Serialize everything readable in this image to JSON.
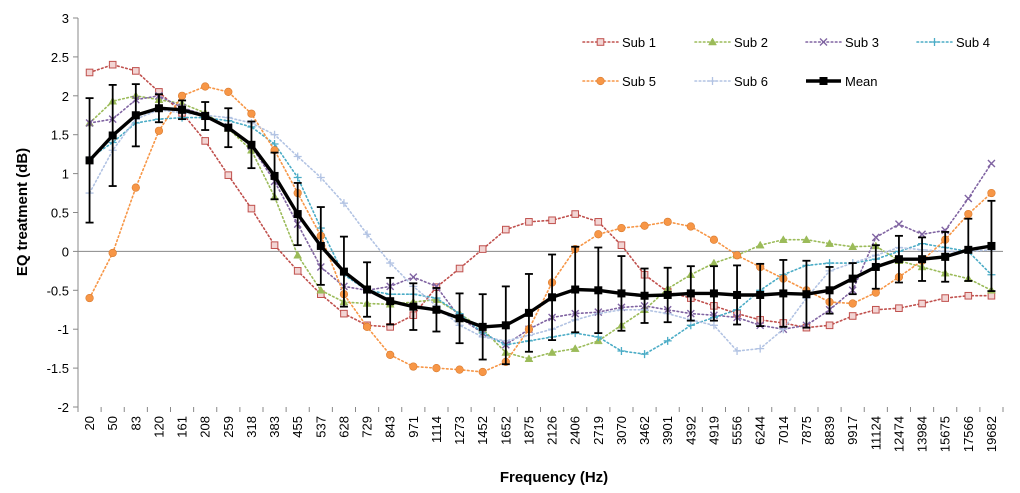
{
  "chart_data": {
    "type": "line",
    "xlabel": "Frequency (Hz)",
    "ylabel": "EQ treatment (dB)",
    "ylim": [
      -2,
      3
    ],
    "yticks": [
      -2,
      -1.5,
      -1,
      -0.5,
      0,
      0.5,
      1,
      1.5,
      2,
      2.5,
      3
    ],
    "grid": false,
    "legend_position": "top-right",
    "categories": [
      "20",
      "50",
      "83",
      "120",
      "161",
      "208",
      "259",
      "318",
      "383",
      "455",
      "537",
      "628",
      "729",
      "843",
      "971",
      "1114",
      "1273",
      "1452",
      "1652",
      "1875",
      "2126",
      "2406",
      "2719",
      "3070",
      "3462",
      "3901",
      "4392",
      "4919",
      "5556",
      "6244",
      "7014",
      "7875",
      "8839",
      "9917",
      "11124",
      "12474",
      "13984",
      "15675",
      "17566",
      "19682"
    ],
    "series": [
      {
        "name": "Sub 1",
        "color": "#c0504d",
        "marker": "square-open",
        "values": [
          2.3,
          2.4,
          2.32,
          2.05,
          1.78,
          1.42,
          0.98,
          0.55,
          0.08,
          -0.25,
          -0.55,
          -0.8,
          -0.95,
          -0.97,
          -0.82,
          -0.46,
          -0.22,
          0.03,
          0.28,
          0.38,
          0.4,
          0.48,
          0.38,
          0.08,
          -0.3,
          -0.52,
          -0.6,
          -0.7,
          -0.8,
          -0.88,
          -0.92,
          -0.98,
          -0.95,
          -0.83,
          -0.75,
          -0.73,
          -0.67,
          -0.6,
          -0.57,
          -0.57
        ]
      },
      {
        "name": "Sub 2",
        "color": "#9bbb59",
        "marker": "triangle",
        "values": [
          1.65,
          1.93,
          2.0,
          1.95,
          1.9,
          1.78,
          1.58,
          1.3,
          0.7,
          -0.05,
          -0.5,
          -0.65,
          -0.67,
          -0.68,
          -0.65,
          -0.62,
          -0.8,
          -1.0,
          -1.3,
          -1.38,
          -1.3,
          -1.25,
          -1.15,
          -0.95,
          -0.75,
          -0.48,
          -0.3,
          -0.15,
          -0.05,
          0.08,
          0.15,
          0.15,
          0.1,
          0.06,
          0.07,
          -0.12,
          -0.2,
          -0.28,
          -0.35,
          -0.5
        ]
      },
      {
        "name": "Sub 3",
        "color": "#8064a2",
        "marker": "x",
        "values": [
          1.65,
          1.7,
          1.95,
          2.0,
          1.85,
          1.75,
          1.6,
          1.35,
          0.9,
          0.35,
          -0.2,
          -0.45,
          -0.5,
          -0.45,
          -0.33,
          -0.45,
          -0.85,
          -1.05,
          -1.2,
          -1.0,
          -0.85,
          -0.8,
          -0.78,
          -0.72,
          -0.7,
          -0.75,
          -0.8,
          -0.82,
          -0.85,
          -0.95,
          -1.0,
          -0.95,
          -0.75,
          -0.5,
          0.18,
          0.35,
          0.22,
          0.27,
          0.68,
          1.13
        ]
      },
      {
        "name": "Sub 4",
        "color": "#4bacc6",
        "marker": "plus",
        "values": [
          1.2,
          1.4,
          1.65,
          1.7,
          1.72,
          1.72,
          1.68,
          1.6,
          1.38,
          0.95,
          0.3,
          -0.3,
          -0.5,
          -0.55,
          -0.55,
          -0.6,
          -0.8,
          -1.05,
          -1.2,
          -1.15,
          -1.1,
          -1.05,
          -1.1,
          -1.28,
          -1.32,
          -1.15,
          -0.95,
          -0.85,
          -0.75,
          -0.5,
          -0.3,
          -0.18,
          -0.15,
          -0.15,
          -0.1,
          0.0,
          0.1,
          0.05,
          0.0,
          -0.3
        ]
      },
      {
        "name": "Sub 5",
        "color": "#f79646",
        "marker": "circle",
        "values": [
          -0.6,
          -0.02,
          0.82,
          1.55,
          2.0,
          2.12,
          2.05,
          1.77,
          1.3,
          0.75,
          0.2,
          -0.55,
          -0.97,
          -1.33,
          -1.48,
          -1.5,
          -1.52,
          -1.55,
          -1.42,
          -1.0,
          -0.4,
          0.03,
          0.22,
          0.3,
          0.33,
          0.38,
          0.32,
          0.15,
          -0.05,
          -0.2,
          -0.35,
          -0.5,
          -0.65,
          -0.67,
          -0.53,
          -0.33,
          -0.12,
          0.15,
          0.48,
          0.75
        ]
      },
      {
        "name": "Sub 6",
        "color": "#b2c3e3",
        "marker": "plus",
        "values": [
          0.75,
          1.3,
          1.7,
          1.82,
          1.78,
          1.75,
          1.72,
          1.65,
          1.5,
          1.22,
          0.95,
          0.62,
          0.22,
          -0.15,
          -0.45,
          -0.7,
          -0.95,
          -1.1,
          -1.15,
          -1.08,
          -1.0,
          -0.88,
          -0.8,
          -0.75,
          -0.75,
          -0.8,
          -0.88,
          -0.95,
          -1.28,
          -1.25,
          -1.0,
          -0.6,
          -0.25,
          -0.15,
          -0.05,
          0.05,
          0.02,
          0.0,
          0.0,
          0.02
        ]
      },
      {
        "name": "Mean",
        "color": "#000000",
        "marker": "square-filled",
        "values": [
          1.17,
          1.49,
          1.75,
          1.84,
          1.82,
          1.74,
          1.59,
          1.37,
          0.97,
          0.48,
          0.07,
          -0.26,
          -0.49,
          -0.64,
          -0.71,
          -0.75,
          -0.86,
          -0.97,
          -0.95,
          -0.79,
          -0.59,
          -0.49,
          -0.5,
          -0.54,
          -0.57,
          -0.56,
          -0.54,
          -0.54,
          -0.56,
          -0.56,
          -0.54,
          -0.55,
          -0.5,
          -0.35,
          -0.2,
          -0.1,
          -0.1,
          -0.07,
          0.02,
          0.07
        ],
        "error": [
          0.8,
          0.65,
          0.4,
          0.18,
          0.12,
          0.18,
          0.25,
          0.3,
          0.3,
          0.4,
          0.5,
          0.45,
          0.35,
          0.3,
          0.3,
          0.28,
          0.32,
          0.42,
          0.5,
          0.5,
          0.55,
          0.55,
          0.55,
          0.48,
          0.35,
          0.35,
          0.35,
          0.35,
          0.38,
          0.4,
          0.43,
          0.43,
          0.3,
          0.2,
          0.28,
          0.3,
          0.28,
          0.32,
          0.4,
          0.58
        ]
      }
    ]
  }
}
